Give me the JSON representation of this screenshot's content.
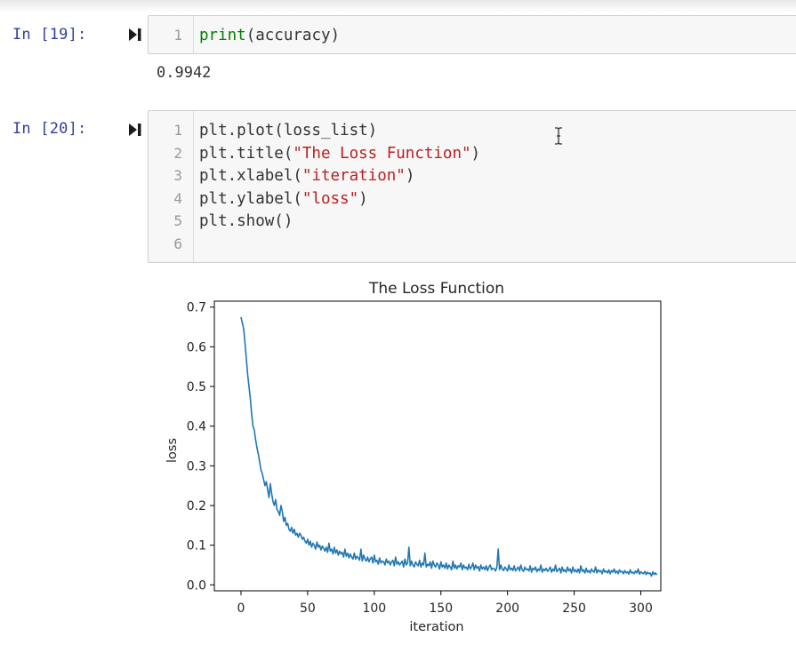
{
  "cells": [
    {
      "prompt": "In [19]:",
      "lines": [
        {
          "num": "1",
          "parts": [
            {
              "t": "print",
              "c": "kw"
            },
            {
              "t": "(accuracy)",
              "c": ""
            }
          ]
        }
      ],
      "output": "0.9942"
    },
    {
      "prompt": "In [20]:",
      "lines": [
        {
          "num": "1",
          "parts": [
            {
              "t": "plt.plot(loss_list)",
              "c": ""
            }
          ]
        },
        {
          "num": "2",
          "parts": [
            {
              "t": "plt.title(",
              "c": ""
            },
            {
              "t": "\"The Loss Function\"",
              "c": "str"
            },
            {
              "t": ")",
              "c": ""
            }
          ]
        },
        {
          "num": "3",
          "parts": [
            {
              "t": "plt.xlabel(",
              "c": ""
            },
            {
              "t": "\"iteration\"",
              "c": "str"
            },
            {
              "t": ")",
              "c": ""
            }
          ]
        },
        {
          "num": "4",
          "parts": [
            {
              "t": "plt.ylabel(",
              "c": ""
            },
            {
              "t": "\"loss\"",
              "c": "str"
            },
            {
              "t": ")",
              "c": ""
            }
          ]
        },
        {
          "num": "5",
          "parts": [
            {
              "t": "plt.show()",
              "c": ""
            }
          ]
        },
        {
          "num": "6",
          "parts": []
        }
      ]
    }
  ],
  "colors": {
    "prompt": "#303f9f",
    "keyword": "#008000",
    "string": "#ba2121",
    "line": "#1f77b4"
  },
  "chart_data": {
    "type": "line",
    "title": "The Loss Function",
    "xlabel": "iteration",
    "ylabel": "loss",
    "xlim": [
      -20,
      315
    ],
    "ylim": [
      -0.015,
      0.715
    ],
    "xticks": [
      0,
      50,
      100,
      150,
      200,
      250,
      300
    ],
    "yticks": [
      0.0,
      0.1,
      0.2,
      0.3,
      0.4,
      0.5,
      0.6,
      0.7
    ],
    "ytick_labels": [
      "0.0",
      "0.1",
      "0.2",
      "0.3",
      "0.4",
      "0.5",
      "0.6",
      "0.7"
    ],
    "grid": false,
    "series": [
      {
        "values": [
          0.675,
          0.66,
          0.645,
          0.61,
          0.57,
          0.53,
          0.5,
          0.47,
          0.43,
          0.4,
          0.39,
          0.365,
          0.345,
          0.33,
          0.31,
          0.29,
          0.28,
          0.265,
          0.25,
          0.26,
          0.24,
          0.22,
          0.255,
          0.23,
          0.21,
          0.2,
          0.215,
          0.19,
          0.185,
          0.175,
          0.2,
          0.185,
          0.16,
          0.17,
          0.15,
          0.155,
          0.14,
          0.135,
          0.145,
          0.13,
          0.14,
          0.125,
          0.13,
          0.12,
          0.13,
          0.125,
          0.115,
          0.12,
          0.11,
          0.105,
          0.115,
          0.1,
          0.11,
          0.095,
          0.105,
          0.1,
          0.09,
          0.108,
          0.095,
          0.1,
          0.088,
          0.098,
          0.092,
          0.085,
          0.095,
          0.082,
          0.105,
          0.085,
          0.09,
          0.078,
          0.095,
          0.08,
          0.088,
          0.075,
          0.085,
          0.078,
          0.082,
          0.07,
          0.09,
          0.072,
          0.08,
          0.068,
          0.078,
          0.07,
          0.065,
          0.08,
          0.065,
          0.072,
          0.068,
          0.062,
          0.09,
          0.06,
          0.075,
          0.065,
          0.06,
          0.07,
          0.058,
          0.066,
          0.07,
          0.055,
          0.075,
          0.058,
          0.062,
          0.052,
          0.068,
          0.055,
          0.06,
          0.058,
          0.05,
          0.065,
          0.055,
          0.06,
          0.05,
          0.058,
          0.062,
          0.048,
          0.07,
          0.052,
          0.058,
          0.05,
          0.055,
          0.06,
          0.045,
          0.065,
          0.05,
          0.055,
          0.095,
          0.048,
          0.06,
          0.05,
          0.045,
          0.058,
          0.052,
          0.048,
          0.062,
          0.045,
          0.055,
          0.05,
          0.08,
          0.045,
          0.052,
          0.048,
          0.058,
          0.042,
          0.06,
          0.05,
          0.045,
          0.055,
          0.05,
          0.04,
          0.058,
          0.045,
          0.05,
          0.042,
          0.055,
          0.04,
          0.05,
          0.045,
          0.038,
          0.06,
          0.042,
          0.05,
          0.04,
          0.048,
          0.045,
          0.055,
          0.038,
          0.05,
          0.042,
          0.045,
          0.038,
          0.052,
          0.04,
          0.045,
          0.055,
          0.038,
          0.05,
          0.042,
          0.046,
          0.035,
          0.05,
          0.04,
          0.045,
          0.038,
          0.048,
          0.036,
          0.045,
          0.05,
          0.038,
          0.042,
          0.04,
          0.035,
          0.045,
          0.09,
          0.038,
          0.05,
          0.04,
          0.036,
          0.045,
          0.04,
          0.035,
          0.05,
          0.038,
          0.042,
          0.036,
          0.048,
          0.035,
          0.04,
          0.045,
          0.035,
          0.05,
          0.038,
          0.034,
          0.045,
          0.038,
          0.04,
          0.035,
          0.048,
          0.032,
          0.042,
          0.038,
          0.045,
          0.033,
          0.04,
          0.036,
          0.05,
          0.032,
          0.04,
          0.036,
          0.042,
          0.034,
          0.038,
          0.045,
          0.032,
          0.04,
          0.035,
          0.05,
          0.033,
          0.038,
          0.042,
          0.03,
          0.045,
          0.034,
          0.038,
          0.032,
          0.045,
          0.035,
          0.04,
          0.03,
          0.045,
          0.033,
          0.038,
          0.032,
          0.04,
          0.03,
          0.048,
          0.034,
          0.038,
          0.03,
          0.042,
          0.032,
          0.036,
          0.03,
          0.04,
          0.034,
          0.032,
          0.045,
          0.03,
          0.038,
          0.033,
          0.036,
          0.028,
          0.04,
          0.032,
          0.035,
          0.03,
          0.038,
          0.028,
          0.036,
          0.032,
          0.04,
          0.03,
          0.035,
          0.028,
          0.038,
          0.032,
          0.034,
          0.028,
          0.036,
          0.03,
          0.033,
          0.027,
          0.038,
          0.03,
          0.032,
          0.028,
          0.035,
          0.03,
          0.04,
          0.027,
          0.033,
          0.03,
          0.028,
          0.034,
          0.026,
          0.032,
          0.028,
          0.03,
          0.022,
          0.033,
          0.026,
          0.03,
          0.025
        ]
      }
    ]
  }
}
